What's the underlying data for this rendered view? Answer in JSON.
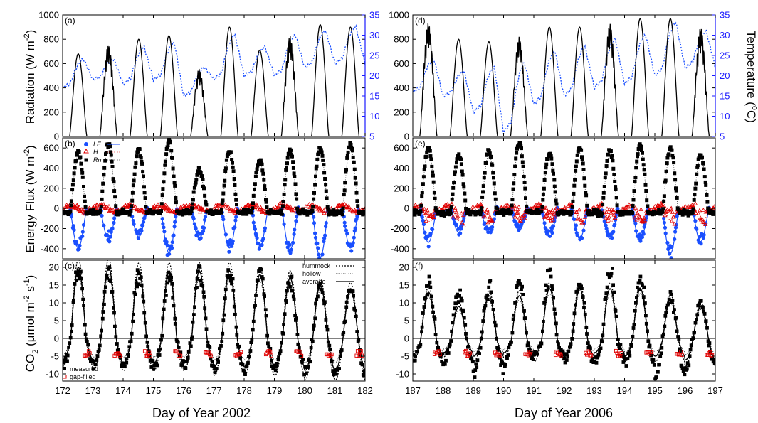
{
  "figure": {
    "panels_left": {
      "x_label": "Day of Year 2002",
      "x_ticks": [
        "172",
        "173",
        "174",
        "175",
        "176",
        "177",
        "178",
        "179",
        "180",
        "181",
        "182"
      ]
    },
    "panels_right": {
      "x_label": "Day of Year 2006",
      "x_ticks": [
        "187",
        "188",
        "189",
        "190",
        "191",
        "192",
        "193",
        "194",
        "195",
        "196",
        "197"
      ]
    },
    "rows": {
      "radiation": {
        "y_label": "Radiation (W m",
        "y_label_sup": "-2",
        "y_label_end": ")",
        "y_ticks": [
          "0",
          "200",
          "400",
          "600",
          "800",
          "1000"
        ],
        "right_label": "Temperature (",
        "right_label_sup": "o",
        "right_label_end": "C)",
        "right_ticks": [
          "5",
          "10",
          "15",
          "20",
          "25",
          "30",
          "35"
        ]
      },
      "energy": {
        "y_label": "Energy Flux (W m",
        "y_label_sup": "-2",
        "y_label_end": ")",
        "y_ticks": [
          "-400",
          "-200",
          "0",
          "200",
          "400",
          "600"
        ],
        "legend": [
          "LE",
          "H",
          "Rn"
        ]
      },
      "co2": {
        "y_label_a": "CO",
        "y_label_sub": "2",
        "y_label_b": " (μmol m",
        "y_label_sup1": "-2",
        "y_label_c": " s",
        "y_label_sup2": "-1",
        "y_label_d": ")",
        "y_ticks": [
          "-10",
          "-5",
          "0",
          "5",
          "10",
          "15",
          "20"
        ],
        "legend_points": [
          "measured",
          "gap-filled"
        ],
        "legend_lines": [
          "hummock",
          "hollow",
          "average"
        ]
      }
    },
    "panel_labels": [
      "(a)",
      "(b)",
      "(c)",
      "(d)",
      "(e)",
      "(f)"
    ]
  },
  "chart_data": [
    {
      "type": "line",
      "panel": "(a)",
      "title": "",
      "xlabel": "Day of Year 2002",
      "ylabel": "Radiation (W m-2)",
      "y2label": "Temperature (oC)",
      "xlim": [
        172,
        182
      ],
      "ylim": [
        0,
        1000
      ],
      "y2lim": [
        5,
        35
      ],
      "series": [
        {
          "axis": "left",
          "style": "solid-black",
          "daily_peak": [
            680,
            760,
            800,
            830,
            560,
            900,
            710,
            830,
            920,
            900
          ]
        },
        {
          "axis": "right",
          "style": "dotted-blue",
          "daily_max": [
            24,
            24,
            27,
            28,
            22,
            30,
            27,
            30,
            31,
            32
          ],
          "daily_min": [
            17,
            19,
            18,
            19,
            15,
            19,
            20,
            20,
            22,
            23
          ]
        }
      ]
    },
    {
      "type": "scatter",
      "panel": "(b)",
      "title": "",
      "xlabel": "Day of Year 2002",
      "ylabel": "Energy Flux (W m-2)",
      "xlim": [
        172,
        182
      ],
      "ylim": [
        -500,
        700
      ],
      "series": [
        {
          "name": "LE",
          "marker": "filled-circle-blue",
          "line": "solid-blue",
          "daily_min": [
            -400,
            -300,
            -280,
            -450,
            -300,
            -400,
            -400,
            -420,
            -500,
            -400
          ]
        },
        {
          "name": "H",
          "marker": "open-triangle-red",
          "line": "dotted-red",
          "daily_range": [
            -100,
            60
          ]
        },
        {
          "name": "Rn",
          "marker": "filled-square-black",
          "line": "dotted-black",
          "daily_peak": [
            600,
            680,
            620,
            700,
            420,
            600,
            520,
            620,
            640,
            680
          ]
        }
      ]
    },
    {
      "type": "scatter",
      "panel": "(c)",
      "title": "",
      "xlabel": "Day of Year 2002",
      "ylabel": "CO2 (umol m-2 s-1)",
      "xlim": [
        172,
        182
      ],
      "ylim": [
        -12,
        22
      ],
      "series": [
        {
          "name": "measured",
          "marker": "filled-square-black",
          "daily_max": [
            20,
            19,
            19,
            18,
            20,
            20,
            21,
            17,
            16,
            15
          ],
          "daily_min": [
            -7,
            -8,
            -8,
            -8,
            -8,
            -9,
            -9,
            -9,
            -10,
            -11
          ]
        },
        {
          "name": "gap-filled",
          "marker": "open-square-red",
          "range": [
            -5,
            6
          ]
        },
        {
          "name": "hummock",
          "line": "dashed-black"
        },
        {
          "name": "hollow",
          "line": "dotted-black"
        },
        {
          "name": "average",
          "line": "solid-black",
          "daily_max": [
            20,
            20,
            19,
            19,
            19,
            19,
            18,
            17,
            15,
            14
          ],
          "daily_min": [
            -6,
            -7,
            -7,
            -7,
            -7,
            -8,
            -8,
            -8,
            -9,
            -9
          ]
        }
      ]
    },
    {
      "type": "line",
      "panel": "(d)",
      "title": "",
      "xlabel": "Day of Year 2006",
      "ylabel": "Radiation (W m-2)",
      "y2label": "Temperature (oC)",
      "xlim": [
        187,
        197
      ],
      "ylim": [
        0,
        1000
      ],
      "y2lim": [
        5,
        35
      ],
      "series": [
        {
          "axis": "left",
          "style": "solid-black",
          "daily_peak": [
            940,
            800,
            780,
            820,
            900,
            900,
            930,
            970,
            970,
            900
          ]
        },
        {
          "axis": "right",
          "style": "dotted-blue",
          "daily_max": [
            24,
            21,
            22,
            23,
            26,
            27,
            29,
            30,
            33,
            31
          ],
          "daily_min": [
            16,
            15,
            11,
            6,
            13,
            15,
            17,
            18,
            20,
            22
          ]
        }
      ]
    },
    {
      "type": "scatter",
      "panel": "(e)",
      "title": "",
      "xlabel": "Day of Year 2006",
      "ylabel": "Energy Flux (W m-2)",
      "xlim": [
        187,
        197
      ],
      "ylim": [
        -500,
        700
      ],
      "series": [
        {
          "name": "LE",
          "daily_min": [
            -340,
            -230,
            -240,
            -210,
            -280,
            -300,
            -300,
            -320,
            -460,
            -330
          ]
        },
        {
          "name": "H",
          "daily_range": [
            -250,
            80
          ]
        },
        {
          "name": "Rn",
          "daily_peak": [
            650,
            560,
            610,
            700,
            590,
            640,
            610,
            660,
            630,
            580
          ]
        }
      ]
    },
    {
      "type": "scatter",
      "panel": "(f)",
      "title": "",
      "xlabel": "Day of Year 2006",
      "ylabel": "CO2 (umol m-2 s-1)",
      "xlim": [
        187,
        197
      ],
      "ylim": [
        -12,
        22
      ],
      "series": [
        {
          "name": "measured",
          "daily_max": [
            16,
            14,
            15,
            17,
            19,
            16,
            20,
            17,
            12,
            10
          ],
          "daily_min": [
            -6,
            -7,
            -10,
            -7,
            -5,
            -6,
            -6,
            -7,
            -11,
            -8
          ]
        },
        {
          "name": "gap-filled",
          "range": [
            -5,
            5
          ]
        },
        {
          "name": "average",
          "daily_max": [
            13,
            9,
            12,
            12,
            14,
            14,
            14,
            14,
            11,
            9
          ],
          "daily_min": [
            -5,
            -4,
            -5,
            -4,
            -5,
            -5,
            -4,
            -5,
            -5,
            -6
          ]
        }
      ]
    }
  ]
}
